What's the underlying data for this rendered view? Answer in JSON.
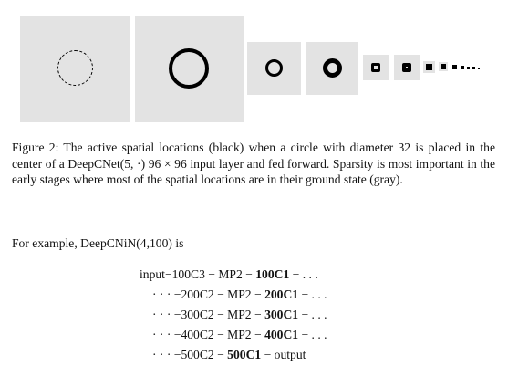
{
  "caption": {
    "label": "Figure 2:",
    "text": " The active spatial locations (black) when a circle with diameter 32 is placed in the center of a DeepCNet(5, ·) 96 × 96 input layer and fed forward. Sparsity is most important in the early stages where most of the spatial locations are in their ground state (gray)."
  },
  "intro": "For example, DeepCNiN(4,100) is",
  "architecture": [
    {
      "prefix": "input−100C3 − MP2 − ",
      "bold": "100C1",
      "suffix": " − . . ."
    },
    {
      "prefix": "· · · −200C2 − MP2 − ",
      "bold": "200C1",
      "suffix": " − . . ."
    },
    {
      "prefix": "· · · −300C2 − MP2 − ",
      "bold": "300C1",
      "suffix": " − . . ."
    },
    {
      "prefix": "· · · −400C2 − MP2 − ",
      "bold": "400C1",
      "suffix": " − . . ."
    },
    {
      "prefix": "· · · −500C2 − ",
      "bold": "500C1",
      "suffix": " − output"
    }
  ],
  "colors": {
    "ground_state": "#e3e3e3",
    "active": "#000000"
  }
}
